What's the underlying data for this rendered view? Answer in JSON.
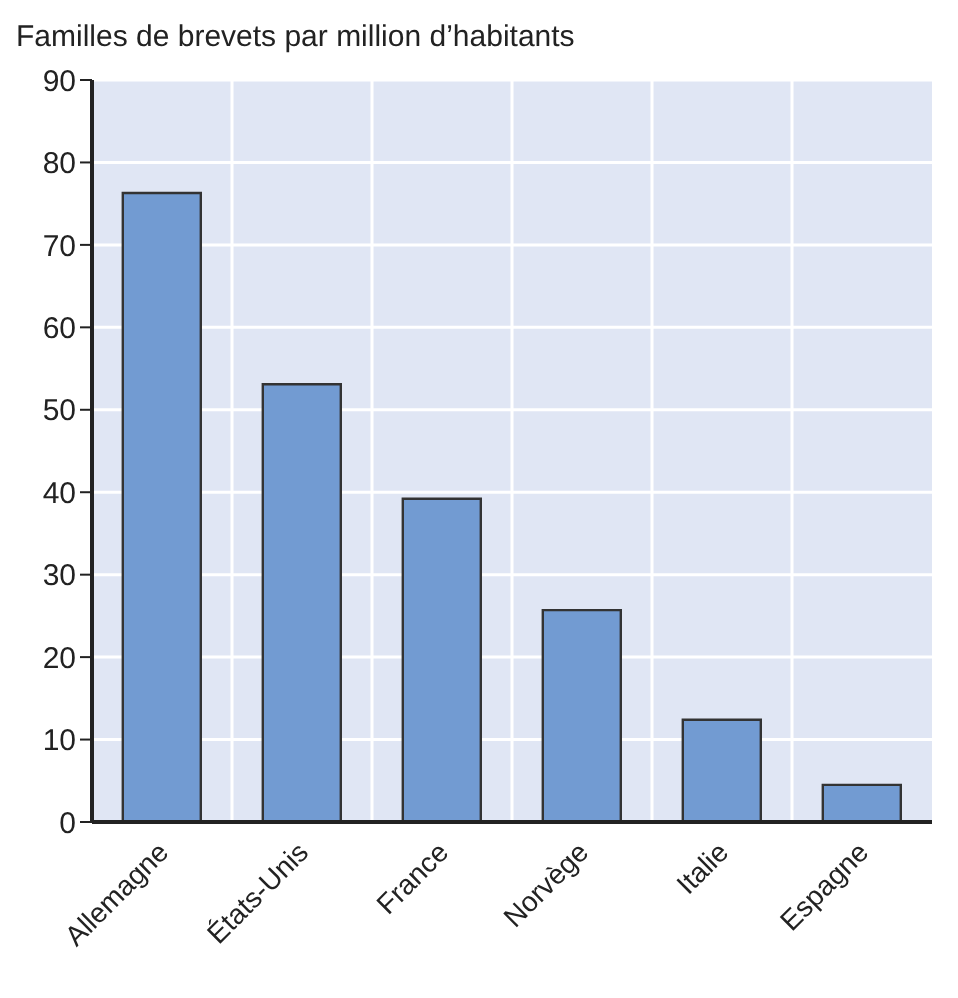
{
  "chart_data": {
    "type": "bar",
    "title": "Familles de brevets par million d’habitants",
    "categories": [
      "Allemagne",
      "États-Unis",
      "France",
      "Norvège",
      "Italie",
      "Espagne"
    ],
    "values": [
      76.3,
      53.1,
      39.2,
      25.7,
      12.4,
      4.5
    ],
    "color": "#729bd2",
    "ylim": [
      0,
      90
    ],
    "yticks": [
      0,
      10,
      20,
      30,
      40,
      50,
      60,
      70,
      80,
      90
    ],
    "grid": true
  }
}
